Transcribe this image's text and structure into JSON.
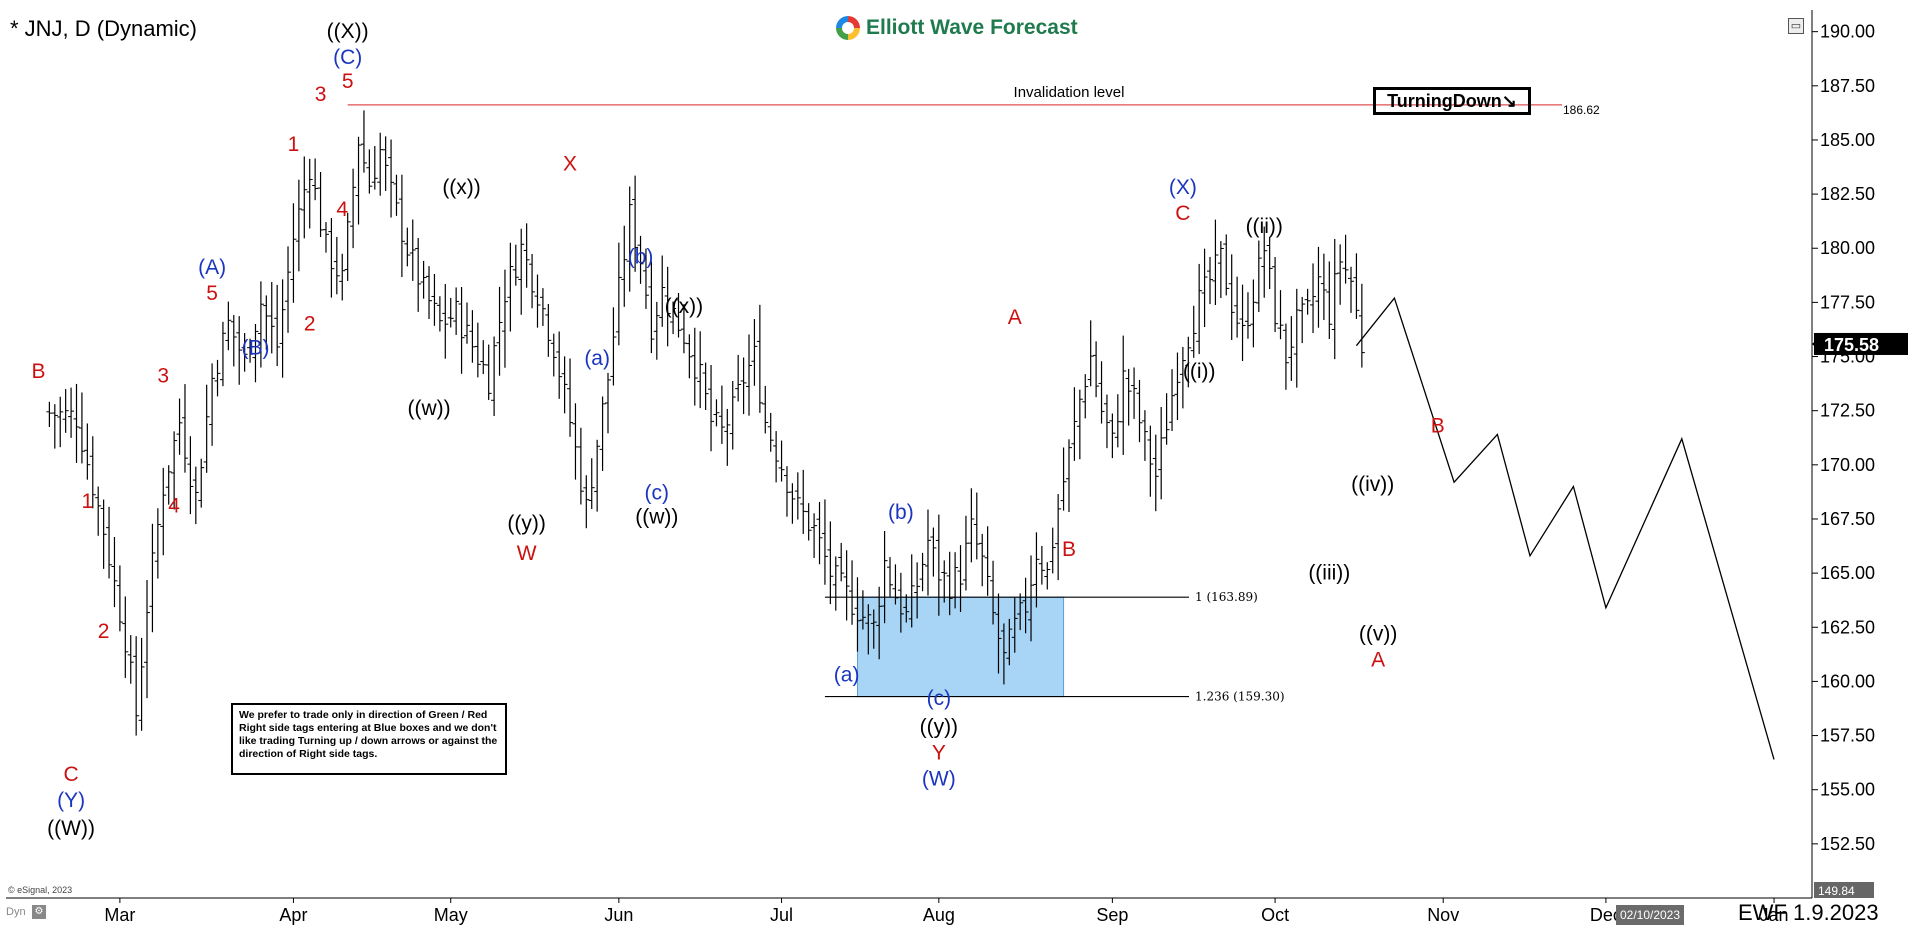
{
  "header": {
    "title": "* JNJ, D (Dynamic)",
    "brand": "Elliott Wave Forecast",
    "right_tag": "TurningDown",
    "right_tag_arrow": "↘"
  },
  "note": "We prefer to trade only in direction of Green / Red Right side tags entering at Blue boxes and we don't like trading Turning up / down arrows or against the direction of Right side tags.",
  "footer": {
    "copyright": "© eSignal, 2023",
    "dyn": "Dyn",
    "date_box": "02/10/2023",
    "ewf_tag": "EWF 1.9.2023"
  },
  "colors": {
    "red": "#cc1111",
    "blue": "#1a35c0",
    "black": "#000000",
    "box": "#a8d4f5",
    "invalidation": "#e05050"
  },
  "chart_data": {
    "type": "ohlc",
    "symbol": "JNJ",
    "ylim": [
      150,
      191
    ],
    "yticks": [
      "152.50",
      "155.00",
      "157.50",
      "160.00",
      "162.50",
      "165.00",
      "167.50",
      "170.00",
      "172.50",
      "175.00",
      "177.50",
      "180.00",
      "182.50",
      "185.00",
      "187.50",
      "190.00"
    ],
    "xticks": [
      {
        "label": "Mar",
        "day": 13
      },
      {
        "label": "Apr",
        "day": 45
      },
      {
        "label": "May",
        "day": 74
      },
      {
        "label": "Jun",
        "day": 105
      },
      {
        "label": "Jul",
        "day": 135
      },
      {
        "label": "Aug",
        "day": 164
      },
      {
        "label": "Sep",
        "day": 196
      },
      {
        "label": "Oct",
        "day": 226
      },
      {
        "label": "Nov",
        "day": 257
      },
      {
        "label": "Dec",
        "day": 287
      },
      {
        "label": "Jan",
        "day": 318
      }
    ],
    "last_price": "175.58",
    "bottom_price": "149.84",
    "closes": [
      [
        0,
        172.4
      ],
      [
        5,
        172.2
      ],
      [
        10,
        167.0
      ],
      [
        14,
        162.0
      ],
      [
        16,
        158.5
      ],
      [
        18,
        163.5
      ],
      [
        21,
        169.0
      ],
      [
        24,
        172.0
      ],
      [
        27,
        168.5
      ],
      [
        30,
        174.0
      ],
      [
        33,
        176.5
      ],
      [
        36,
        174.8
      ],
      [
        39,
        177.5
      ],
      [
        42,
        175.5
      ],
      [
        45,
        180.5
      ],
      [
        48,
        183.8
      ],
      [
        51,
        180.0
      ],
      [
        54,
        178.5
      ],
      [
        57,
        185.0
      ],
      [
        59,
        183.0
      ],
      [
        61,
        184.5
      ],
      [
        63,
        182.5
      ],
      [
        66,
        180.0
      ],
      [
        69,
        178.0
      ],
      [
        72,
        176.5
      ],
      [
        75,
        177.0
      ],
      [
        78,
        175.5
      ],
      [
        81,
        174.0
      ],
      [
        84,
        178.0
      ],
      [
        87,
        180.0
      ],
      [
        90,
        178.0
      ],
      [
        93,
        175.5
      ],
      [
        96,
        172.0
      ],
      [
        99,
        168.0
      ],
      [
        101,
        171.0
      ],
      [
        103,
        174.0
      ],
      [
        105,
        178.0
      ],
      [
        107,
        181.5
      ],
      [
        109,
        179.5
      ],
      [
        111,
        176.5
      ],
      [
        113,
        178.0
      ],
      [
        115,
        177.0
      ],
      [
        117,
        176.0
      ],
      [
        120,
        174.0
      ],
      [
        122,
        172.0
      ],
      [
        124,
        171.5
      ],
      [
        126,
        172.5
      ],
      [
        128,
        174.0
      ],
      [
        130,
        175.0
      ],
      [
        132,
        172.0
      ],
      [
        135,
        170.0
      ],
      [
        138,
        168.0
      ],
      [
        141,
        167.0
      ],
      [
        144,
        165.0
      ],
      [
        147,
        164.0
      ],
      [
        150,
        163.0
      ],
      [
        152,
        162.5
      ],
      [
        154,
        165.5
      ],
      [
        156,
        164.0
      ],
      [
        158,
        163.0
      ],
      [
        160,
        164.5
      ],
      [
        162,
        166.5
      ],
      [
        164,
        165.0
      ],
      [
        166,
        164.5
      ],
      [
        168,
        165.0
      ],
      [
        170,
        167.0
      ],
      [
        172,
        165.5
      ],
      [
        174,
        163.0
      ],
      [
        176,
        161.0
      ],
      [
        178,
        162.5
      ],
      [
        180,
        163.5
      ],
      [
        182,
        166.0
      ],
      [
        184,
        165.0
      ],
      [
        186,
        168.0
      ],
      [
        188,
        170.5
      ],
      [
        190,
        173.0
      ],
      [
        192,
        175.0
      ],
      [
        194,
        172.5
      ],
      [
        196,
        171.0
      ],
      [
        198,
        174.0
      ],
      [
        200,
        173.0
      ],
      [
        202,
        171.0
      ],
      [
        204,
        169.5
      ],
      [
        206,
        172.0
      ],
      [
        208,
        174.5
      ],
      [
        210,
        176.0
      ],
      [
        212,
        177.5
      ],
      [
        214,
        178.5
      ],
      [
        216,
        179.5
      ],
      [
        218,
        177.5
      ],
      [
        220,
        176.0
      ],
      [
        222,
        178.0
      ],
      [
        224,
        180.0
      ],
      [
        226,
        177.0
      ],
      [
        228,
        175.0
      ],
      [
        230,
        176.5
      ],
      [
        232,
        177.0
      ],
      [
        234,
        178.5
      ],
      [
        236,
        177.0
      ],
      [
        238,
        179.5
      ],
      [
        240,
        178.5
      ],
      [
        242,
        175.5
      ]
    ],
    "invalidation": {
      "label": "Invalidation level",
      "price": 186.62,
      "price_label": "186.62"
    },
    "fib_levels": [
      {
        "label": "1 (163.89)",
        "price": 163.89
      },
      {
        "label": "1.236 (159.30)",
        "price": 159.3
      }
    ],
    "projection": [
      [
        241,
        175.5
      ],
      [
        248,
        177.7
      ],
      [
        259,
        169.2
      ],
      [
        267,
        171.4
      ],
      [
        273,
        165.8
      ],
      [
        281,
        169.0
      ],
      [
        287,
        163.4
      ],
      [
        301,
        171.2
      ],
      [
        318,
        156.4
      ]
    ],
    "wave_labels": [
      {
        "text": "B",
        "day": -2,
        "price": 174.0,
        "color": "red"
      },
      {
        "text": "1",
        "day": 7,
        "price": 168.0,
        "color": "red"
      },
      {
        "text": "2",
        "day": 10,
        "price": 162.0,
        "color": "red"
      },
      {
        "text": "3",
        "day": 21,
        "price": 173.8,
        "color": "red"
      },
      {
        "text": "4",
        "day": 23,
        "price": 167.8,
        "color": "red"
      },
      {
        "text": "C",
        "day": 4,
        "price": 155.4,
        "color": "red"
      },
      {
        "text": "(Y)",
        "day": 4,
        "price": 154.2,
        "color": "blue"
      },
      {
        "text": "((W))",
        "day": 4,
        "price": 152.9,
        "color": "black"
      },
      {
        "text": "5",
        "day": 30,
        "price": 177.6,
        "color": "red"
      },
      {
        "text": "(A)",
        "day": 30,
        "price": 178.8,
        "color": "blue"
      },
      {
        "text": "(B)",
        "day": 38,
        "price": 175.1,
        "color": "blue"
      },
      {
        "text": "1",
        "day": 45,
        "price": 184.5,
        "color": "red"
      },
      {
        "text": "2",
        "day": 48,
        "price": 176.2,
        "color": "red"
      },
      {
        "text": "3",
        "day": 50,
        "price": 186.8,
        "color": "red"
      },
      {
        "text": "4",
        "day": 54,
        "price": 181.5,
        "color": "red"
      },
      {
        "text": "5",
        "day": 55,
        "price": 187.4,
        "color": "red"
      },
      {
        "text": "(C)",
        "day": 55,
        "price": 188.5,
        "color": "blue"
      },
      {
        "text": "((X))",
        "day": 55,
        "price": 189.7,
        "color": "black"
      },
      {
        "text": "((x))",
        "day": 76,
        "price": 182.5,
        "color": "black"
      },
      {
        "text": "((w))",
        "day": 70,
        "price": 172.3,
        "color": "black"
      },
      {
        "text": "((y))",
        "day": 88,
        "price": 167.0,
        "color": "black"
      },
      {
        "text": "W",
        "day": 88,
        "price": 165.6,
        "color": "red"
      },
      {
        "text": "X",
        "day": 96,
        "price": 183.6,
        "color": "red"
      },
      {
        "text": "(a)",
        "day": 101,
        "price": 174.6,
        "color": "blue"
      },
      {
        "text": "(b)",
        "day": 109,
        "price": 179.3,
        "color": "blue"
      },
      {
        "text": "(c)",
        "day": 112,
        "price": 168.4,
        "color": "blue"
      },
      {
        "text": "((w))",
        "day": 112,
        "price": 167.3,
        "color": "black"
      },
      {
        "text": "((x))",
        "day": 117,
        "price": 177.0,
        "color": "black"
      },
      {
        "text": "(a)",
        "day": 147,
        "price": 160.0,
        "color": "blue"
      },
      {
        "text": "(b)",
        "day": 157,
        "price": 167.5,
        "color": "blue"
      },
      {
        "text": "(c)",
        "day": 164,
        "price": 158.9,
        "color": "blue"
      },
      {
        "text": "((y))",
        "day": 164,
        "price": 157.6,
        "color": "black"
      },
      {
        "text": "Y",
        "day": 164,
        "price": 156.4,
        "color": "red"
      },
      {
        "text": "(W)",
        "day": 164,
        "price": 155.2,
        "color": "blue"
      },
      {
        "text": "A",
        "day": 178,
        "price": 176.5,
        "color": "red"
      },
      {
        "text": "B",
        "day": 188,
        "price": 165.8,
        "color": "red"
      },
      {
        "text": "(X)",
        "day": 209,
        "price": 182.5,
        "color": "blue"
      },
      {
        "text": "C",
        "day": 209,
        "price": 181.3,
        "color": "red"
      },
      {
        "text": "((i))",
        "day": 212,
        "price": 174.0,
        "color": "black"
      },
      {
        "text": "((ii))",
        "day": 224,
        "price": 180.7,
        "color": "black"
      },
      {
        "text": "((iii))",
        "day": 236,
        "price": 164.7,
        "color": "black"
      },
      {
        "text": "((iv))",
        "day": 244,
        "price": 168.8,
        "color": "black"
      },
      {
        "text": "((v))",
        "day": 245,
        "price": 161.9,
        "color": "black"
      },
      {
        "text": "A",
        "day": 245,
        "price": 160.7,
        "color": "red"
      },
      {
        "text": "B",
        "day": 256,
        "price": 171.5,
        "color": "red"
      }
    ]
  }
}
